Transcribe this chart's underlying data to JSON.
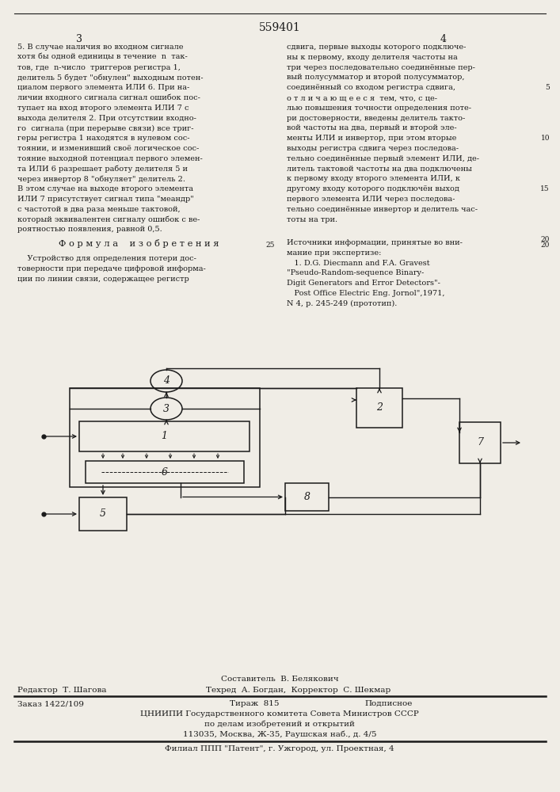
{
  "page_number_center": "559401",
  "page_col_left": "3",
  "page_col_right": "4",
  "bg_color": "#f0ede6",
  "text_color": "#1a1a1a",
  "left_col_text": [
    "5. В случае наличия во входном сигнале",
    "хотя бы одной единицы в течение  n  так-",
    "тов, где  n-число  триггеров регистра 1,",
    "делитель 5 будет \"обнулен\" выходным потен-",
    "циалом первого элемента ИЛИ 6. При на-",
    "личии входного сигнала сигнал ошибок пос-",
    "тупает на вход второго элемента ИЛИ 7 с",
    "выхода делителя 2. При отсутствии входно-",
    "го  сигнала (при перерыве связи) все триг-",
    "геры регистра 1 находятся в нулевом сос-",
    "тоянии, и изменивший своё логическое сос-",
    "тояние выходной потенциал первого элемен-",
    "та ИЛИ 6 разрешает работу делителя 5 и",
    "через инвертор 8 \"обнуляет\" делитель 2.",
    "В этом случае на выходе второго элемента",
    "ИЛИ 7 присутствует сигнал типа \"меандр\"",
    "с частотой в два раза меньше тактовой,",
    "который эквивалентен сигналу ошибок с ве-",
    "роятностью появления, равной 0,5."
  ],
  "right_col_text": [
    "сдвига, первые выходы которого подключе-",
    "ны к первому, входу делителя частоты на",
    "три через последовательно соединённые пер-",
    "вый полусумматор и второй полусумматор,",
    "соединённый со входом регистра сдвига,",
    "о т л и ч а ю щ е е с я  тем, что, с це-",
    "лью повышения точности определения поте-",
    "ри достоверности, введены делитель такто-",
    "вой частоты на два, первый и второй эле-",
    "менты ИЛИ и инвертор, при этом вторые",
    "выходы регистра сдвига через последова-",
    "тельно соединённые первый элемент ИЛИ, де-",
    "литель тактовой частоты на два подключены",
    "к первому входу второго элемента ИЛИ, к",
    "другому входу которого подключён выход",
    "первого элемента ИЛИ через последова-",
    "тельно соединённые инвертор и делитель час-",
    "тоты на три."
  ],
  "formula_header": "Ф о р м у л а    и з о б р е т е н и я",
  "formula_text": [
    "    Устройство для определения потери дос-",
    "товерности при передаче цифровой информа-",
    "ции по линии связи, содержащее регистр"
  ],
  "sources_header": "Источники информации, принятые во вни-",
  "sources_text": [
    "мание при экспертизе:",
    "   1. D.G. Diecmann and F.A. Gravest",
    "\"Pseudo-Random-sequence Binary-",
    "Digit Generators and Error Detectors\"-",
    "   Post Office Electric Eng. Jornol\",1971,",
    "N 4, p. 245-249 (прототип)."
  ],
  "footer_line1": "Составитель  В. Белякович",
  "footer_line2_left": "Редактор  Т. Шагова",
  "footer_line2_mid": "Техред  А. Богдан,  Корректор  С. Шекмар",
  "footer_line3_left": "Заказ 1422/109",
  "footer_line3_mid": "Тираж  815",
  "footer_line3_right": "Подписное",
  "footer_line4": "ЦНИИПИ Государственного комитета Совета Министров СССР",
  "footer_line5": "по делам изобретений и открытий",
  "footer_line6": "113035, Москва, Ж-35, Раушская наб., д. 4/5",
  "footer_line7": "Филиал ППП \"Патент\", г. Ужгород, ул. Проектная, 4"
}
